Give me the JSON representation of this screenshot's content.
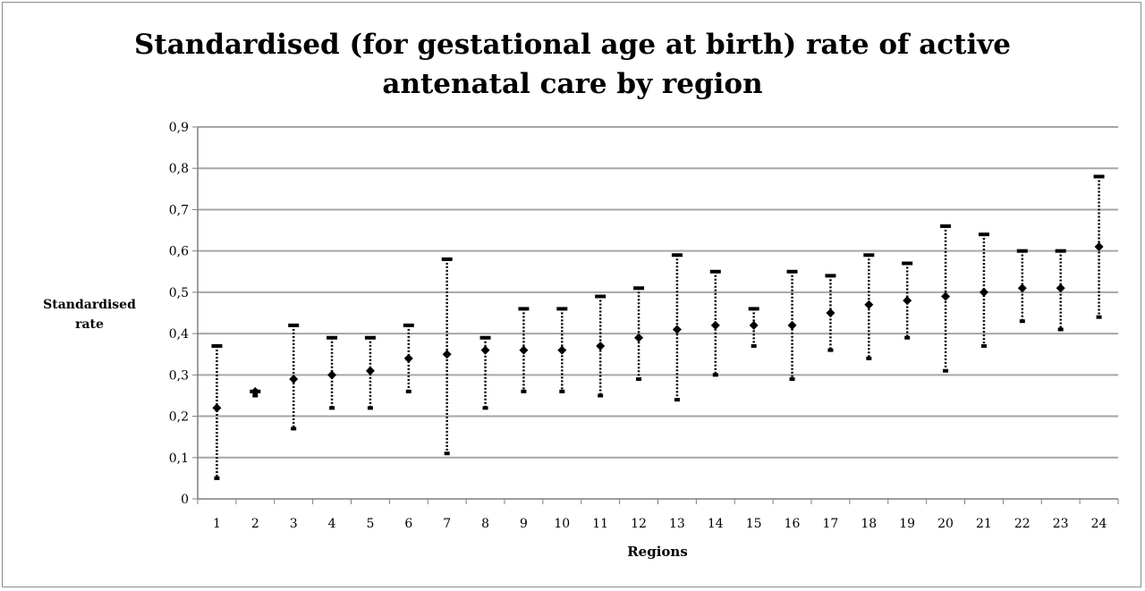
{
  "chart_data": {
    "type": "scatter",
    "title": [
      "Standardised (for gestational age at birth) rate of active",
      "antenatal care by region"
    ],
    "xlabel": "Regions",
    "ylabel": [
      "Standardised",
      "rate"
    ],
    "categories": [
      "1",
      "2",
      "3",
      "4",
      "5",
      "6",
      "7",
      "8",
      "9",
      "10",
      "11",
      "12",
      "13",
      "14",
      "15",
      "16",
      "17",
      "18",
      "19",
      "20",
      "21",
      "22",
      "23",
      "24"
    ],
    "y_ticks": [
      "0",
      "0,1",
      "0,2",
      "0,3",
      "0,4",
      "0,5",
      "0,6",
      "0,7",
      "0,8",
      "0,9"
    ],
    "ylim": [
      0,
      0.9
    ],
    "grid": true,
    "legend": "none",
    "series": [
      {
        "values": [
          0.22,
          0.26,
          0.29,
          0.3,
          0.31,
          0.34,
          0.35,
          0.36,
          0.36,
          0.36,
          0.37,
          0.39,
          0.41,
          0.42,
          0.42,
          0.42,
          0.45,
          0.47,
          0.48,
          0.49,
          0.5,
          0.51,
          0.51,
          0.61
        ],
        "lower": [
          0.05,
          0.25,
          0.17,
          0.22,
          0.22,
          0.26,
          0.11,
          0.22,
          0.26,
          0.26,
          0.25,
          0.29,
          0.24,
          0.3,
          0.37,
          0.29,
          0.36,
          0.34,
          0.39,
          0.31,
          0.37,
          0.43,
          0.41,
          0.44
        ],
        "upper": [
          0.37,
          0.26,
          0.42,
          0.39,
          0.39,
          0.42,
          0.58,
          0.39,
          0.46,
          0.46,
          0.49,
          0.51,
          0.59,
          0.55,
          0.46,
          0.55,
          0.54,
          0.59,
          0.57,
          0.66,
          0.64,
          0.6,
          0.6,
          0.78
        ]
      }
    ],
    "colors": {
      "grid": "#a6a6a6",
      "axis": "#7f7f7f",
      "marker": "#000000"
    }
  }
}
